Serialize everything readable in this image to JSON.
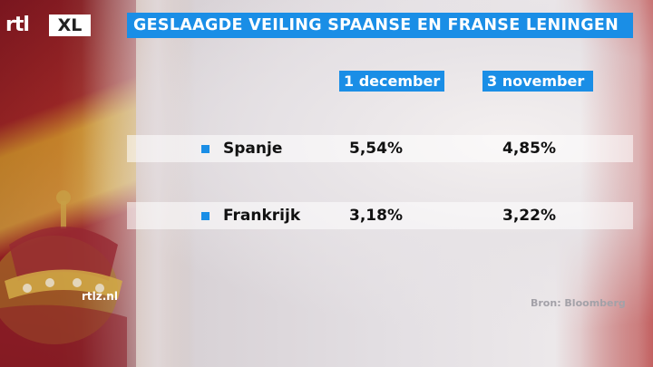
{
  "logo": {
    "rtl": "rtl",
    "xl": "XL"
  },
  "title": "GESLAAGDE VEILING SPAANSE EN FRANSE LENINGEN",
  "columns": [
    "1 december",
    "3 november"
  ],
  "rows": [
    {
      "name": "Spanje",
      "dec": "5,54%",
      "nov": "4,85%"
    },
    {
      "name": "Frankrijk",
      "dec": "3,18%",
      "nov": "3,22%"
    }
  ],
  "footer": {
    "website": "rtlz.nl",
    "source": "Bron: Bloomberg"
  },
  "colors": {
    "accent": "#1a8ee6"
  }
}
